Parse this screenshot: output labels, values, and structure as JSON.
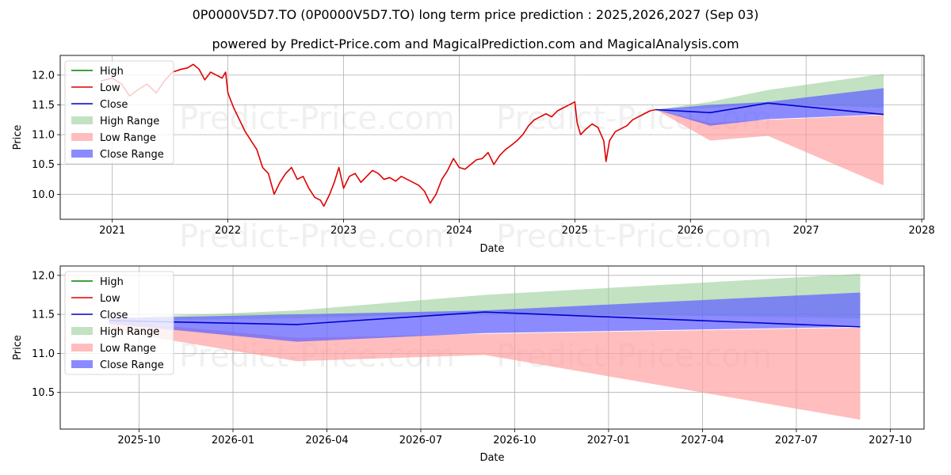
{
  "title": "0P0000V5D7.TO (0P0000V5D7.TO) long term price prediction : 2025,2026,2027 (Sep 03)",
  "subtitle": "powered by Predict-Price.com and MagicalPrediction.com and MagicalAnalysis.com",
  "watermark": "Predict-Price.com",
  "colors": {
    "high": "#008000",
    "low": "#e00000",
    "close": "#0000cc",
    "high_range": "#8fca8f",
    "low_range": "#ff9a9a",
    "close_range": "#6464ff"
  },
  "chart_data": [
    {
      "type": "line",
      "xlabel": "Date",
      "ylabel": "Price",
      "xlim": [
        2020.55,
        2028.02
      ],
      "ylim": [
        9.58,
        12.33
      ],
      "yticks": [
        10.0,
        10.5,
        11.0,
        11.5,
        12.0
      ],
      "ytick_labels": [
        "10.0",
        "10.5",
        "11.0",
        "11.5",
        "12.0"
      ],
      "xticks": [
        2021,
        2022,
        2023,
        2024,
        2025,
        2026,
        2027,
        2028
      ],
      "xtick_labels": [
        "2021",
        "2022",
        "2023",
        "2024",
        "2025",
        "2026",
        "2027",
        "2028"
      ],
      "grid": true,
      "legend": {
        "position": "top-left",
        "entries": [
          "High",
          "Low",
          "Close",
          "High Range",
          "Low Range",
          "Close Range"
        ]
      },
      "history": {
        "name": "Low",
        "x": [
          2020.9,
          2021.0,
          2021.08,
          2021.15,
          2021.22,
          2021.3,
          2021.38,
          2021.45,
          2021.52,
          2021.6,
          2021.65,
          2021.7,
          2021.75,
          2021.8,
          2021.85,
          2021.9,
          2021.95,
          2021.98,
          2022.0,
          2022.05,
          2022.1,
          2022.15,
          2022.2,
          2022.25,
          2022.3,
          2022.35,
          2022.4,
          2022.45,
          2022.5,
          2022.55,
          2022.6,
          2022.65,
          2022.7,
          2022.75,
          2022.8,
          2022.83,
          2022.88,
          2022.92,
          2022.96,
          2023.0,
          2023.05,
          2023.1,
          2023.15,
          2023.2,
          2023.25,
          2023.3,
          2023.35,
          2023.4,
          2023.45,
          2023.5,
          2023.55,
          2023.6,
          2023.65,
          2023.7,
          2023.75,
          2023.8,
          2023.85,
          2023.9,
          2023.95,
          2024.0,
          2024.05,
          2024.1,
          2024.15,
          2024.2,
          2024.25,
          2024.3,
          2024.35,
          2024.4,
          2024.45,
          2024.5,
          2024.55,
          2024.6,
          2024.65,
          2024.7,
          2024.75,
          2024.8,
          2024.85,
          2024.9,
          2024.95,
          2025.0,
          2025.02,
          2025.05,
          2025.1,
          2025.15,
          2025.2,
          2025.25,
          2025.27,
          2025.3,
          2025.35,
          2025.4,
          2025.45,
          2025.5,
          2025.55,
          2025.6,
          2025.65,
          2025.7
        ],
        "y": [
          11.9,
          11.95,
          11.85,
          11.65,
          11.75,
          11.85,
          11.7,
          11.9,
          12.05,
          12.1,
          12.12,
          12.18,
          12.1,
          11.92,
          12.05,
          12.0,
          11.95,
          12.05,
          11.7,
          11.45,
          11.25,
          11.05,
          10.9,
          10.75,
          10.45,
          10.35,
          10.0,
          10.2,
          10.35,
          10.45,
          10.25,
          10.3,
          10.1,
          9.95,
          9.9,
          9.8,
          10.0,
          10.2,
          10.45,
          10.1,
          10.3,
          10.35,
          10.2,
          10.3,
          10.4,
          10.35,
          10.25,
          10.28,
          10.22,
          10.3,
          10.25,
          10.2,
          10.15,
          10.05,
          9.85,
          10.0,
          10.25,
          10.4,
          10.6,
          10.45,
          10.42,
          10.5,
          10.58,
          10.6,
          10.7,
          10.5,
          10.65,
          10.75,
          10.82,
          10.9,
          11.0,
          11.15,
          11.25,
          11.3,
          11.35,
          11.3,
          11.4,
          11.45,
          11.5,
          11.55,
          11.2,
          11.0,
          11.1,
          11.18,
          11.12,
          10.9,
          10.55,
          10.9,
          11.05,
          11.1,
          11.15,
          11.25,
          11.3,
          11.35,
          11.4,
          11.42
        ]
      },
      "forecast": {
        "x": [
          2025.7,
          2026.17,
          2026.67,
          2027.67
        ],
        "close": [
          11.42,
          11.37,
          11.53,
          11.34
        ],
        "high_range": [
          [
            11.42,
            11.42
          ],
          [
            11.45,
            11.55
          ],
          [
            11.52,
            11.75
          ],
          [
            11.45,
            12.02
          ]
        ],
        "low_range": [
          [
            11.42,
            11.42
          ],
          [
            10.9,
            11.2
          ],
          [
            10.98,
            11.25
          ],
          [
            10.15,
            11.33
          ]
        ],
        "close_range": [
          [
            11.42,
            11.42
          ],
          [
            11.15,
            11.5
          ],
          [
            11.26,
            11.55
          ],
          [
            11.34,
            11.78
          ]
        ]
      }
    },
    {
      "type": "line",
      "xlabel": "Date",
      "ylabel": "Price",
      "xlim": [
        2025.54,
        2027.84
      ],
      "ylim": [
        10.03,
        12.12
      ],
      "yticks": [
        10.5,
        11.0,
        11.5,
        12.0
      ],
      "ytick_labels": [
        "10.5",
        "11.0",
        "11.5",
        "12.0"
      ],
      "xticks": [
        2025.75,
        2026.0,
        2026.25,
        2026.5,
        2026.75,
        2027.0,
        2027.25,
        2027.5,
        2027.75
      ],
      "xtick_labels": [
        "2025-10",
        "2026-01",
        "2026-04",
        "2026-07",
        "2026-10",
        "2027-01",
        "2027-04",
        "2027-07",
        "2027-10"
      ],
      "grid": true,
      "legend": {
        "position": "top-left",
        "entries": [
          "High",
          "Low",
          "Close",
          "High Range",
          "Low Range",
          "Close Range"
        ]
      },
      "forecast": {
        "x": [
          2025.67,
          2026.17,
          2026.67,
          2027.67
        ],
        "close": [
          11.42,
          11.37,
          11.53,
          11.34
        ],
        "high_range": [
          [
            11.42,
            11.45
          ],
          [
            11.45,
            11.55
          ],
          [
            11.52,
            11.75
          ],
          [
            11.45,
            12.02
          ]
        ],
        "low_range": [
          [
            11.3,
            11.42
          ],
          [
            10.9,
            11.2
          ],
          [
            10.98,
            11.25
          ],
          [
            10.15,
            11.33
          ]
        ],
        "close_range": [
          [
            11.38,
            11.45
          ],
          [
            11.15,
            11.5
          ],
          [
            11.26,
            11.55
          ],
          [
            11.34,
            11.78
          ]
        ]
      }
    }
  ]
}
